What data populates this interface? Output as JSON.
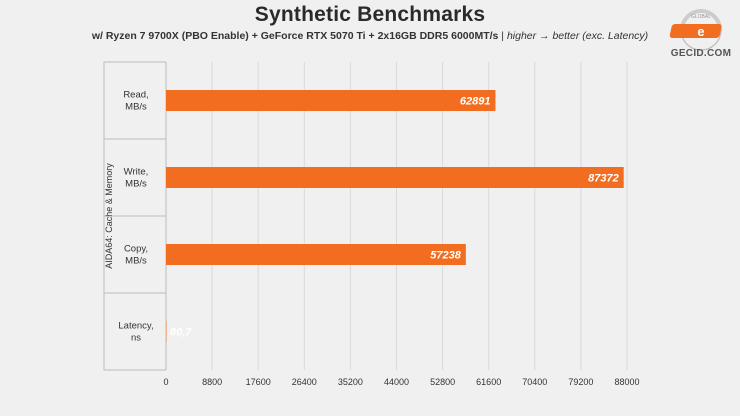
{
  "header": {
    "title": "Synthetic Benchmarks",
    "subtitle_config": "w/ Ryzen 7 9700X (PBO Enable) + GeForce RTX 5070 Ti + 2x16GB DDR5 6000MT/s",
    "subtitle_sep": " | ",
    "subtitle_note": "higher → better (exc. Latency)"
  },
  "logo": {
    "text": "GECID.COM",
    "ring_text": "GLOBAL",
    "mark": "e"
  },
  "chart_data": {
    "type": "bar",
    "orientation": "horizontal",
    "group_label": "AIDA64: Cache & Memory",
    "categories": [
      [
        "Read,",
        "MB/s"
      ],
      [
        "Write,",
        "MB/s"
      ],
      [
        "Copy,",
        "MB/s"
      ],
      [
        "Latency,",
        "ns"
      ]
    ],
    "values": [
      62891,
      87372,
      57238,
      80.7
    ],
    "value_labels": [
      "62891",
      "87372",
      "57238",
      "80,7"
    ],
    "xlim": [
      0,
      88000
    ],
    "xticks": [
      0,
      8800,
      17600,
      26400,
      35200,
      44000,
      52800,
      61600,
      70400,
      79200,
      88000
    ],
    "grid": true,
    "bar_color": "#f36d21"
  }
}
